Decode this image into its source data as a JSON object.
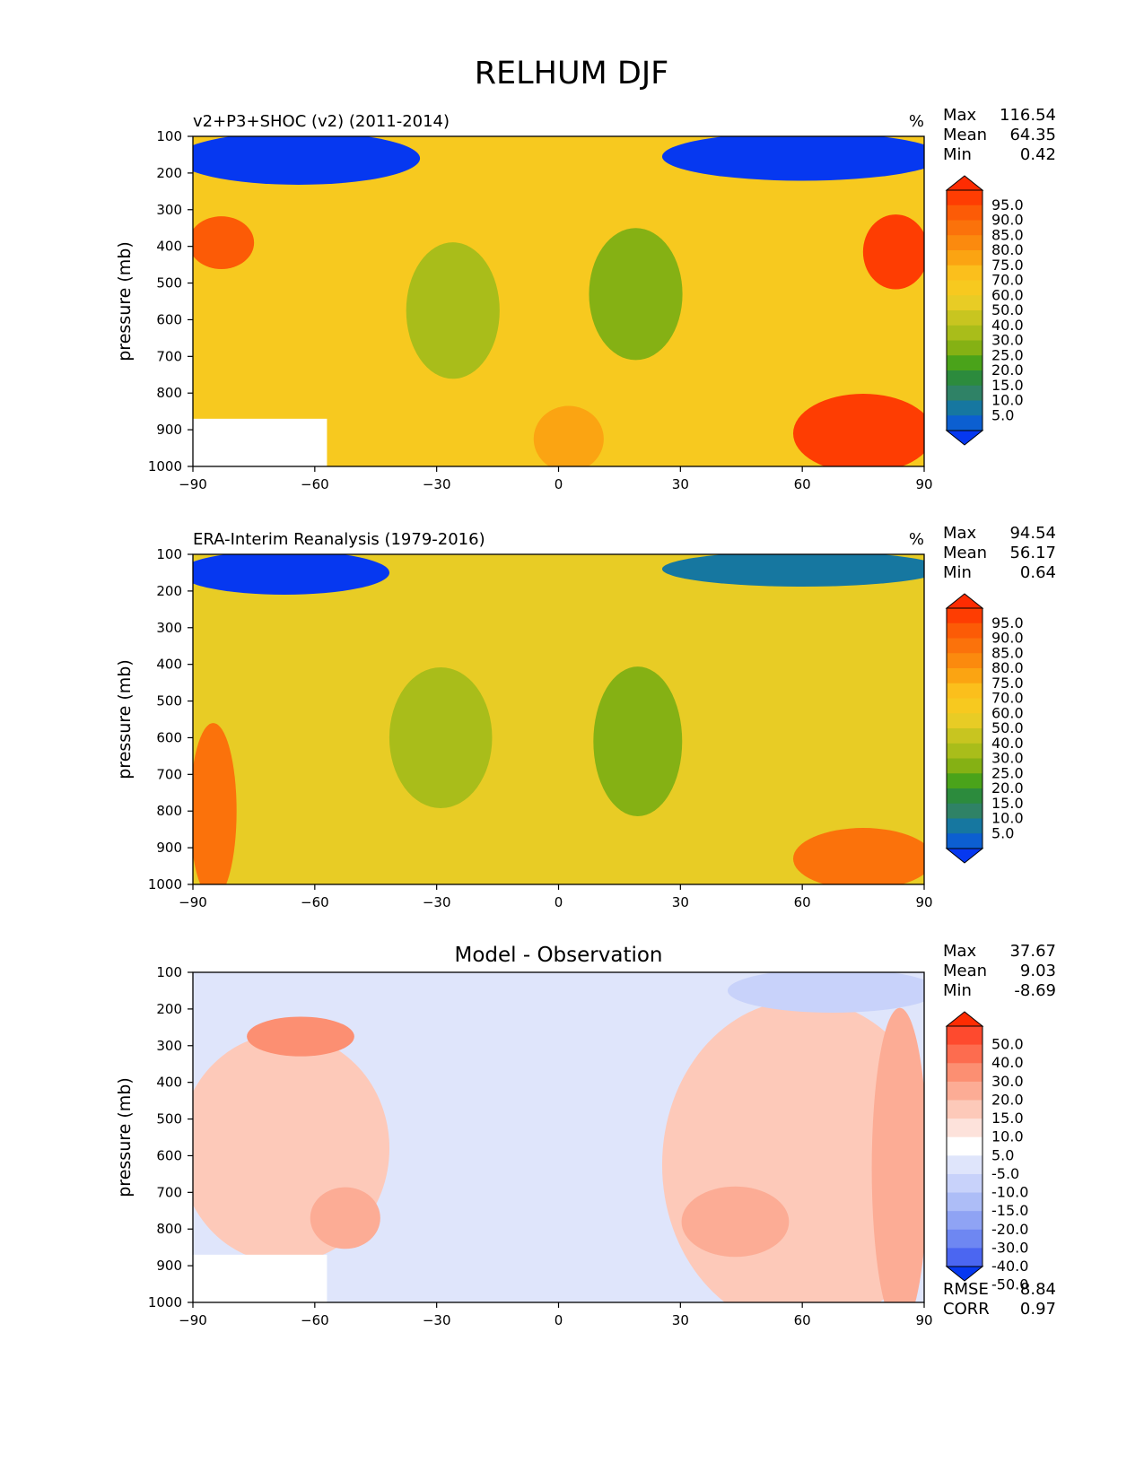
{
  "figure_title": "RELHUM DJF",
  "chart_data": [
    {
      "type": "heatmap",
      "title": "v2+P3+SHOC (v2) (2011-2014)",
      "units": "%",
      "ylabel": "pressure (mb)",
      "xlim": [
        -90,
        90
      ],
      "ylim": [
        1000,
        100
      ],
      "x_ticks": [
        "−90",
        "−60",
        "−30",
        "0",
        "30",
        "60",
        "90"
      ],
      "y_ticks": [
        "100",
        "200",
        "300",
        "400",
        "500",
        "600",
        "700",
        "800",
        "900",
        "1000"
      ],
      "stats": [
        {
          "label": "Max",
          "value": "116.54"
        },
        {
          "label": "Mean",
          "value": "64.35"
        },
        {
          "label": "Min",
          "value": "0.42"
        }
      ],
      "colorbar": {
        "labels": [
          "95.0",
          "90.0",
          "85.0",
          "80.0",
          "75.0",
          "70.0",
          "60.0",
          "50.0",
          "40.0",
          "30.0",
          "25.0",
          "20.0",
          "15.0",
          "10.0",
          "5.0"
        ],
        "colors": [
          "#fe2c02",
          "#fe3d02",
          "#fc5b06",
          "#fb720b",
          "#fb8a0e",
          "#fba412",
          "#fbbf1c",
          "#f7c91f",
          "#e8cc25",
          "#c8c520",
          "#a9bd1a",
          "#85b114",
          "#4aa31a",
          "#2c8b3d",
          "#2f8266",
          "#1677a0",
          "#0c5fd1",
          "#0638f0"
        ],
        "over_color": "#fe2c02",
        "under_color": "#0638f0"
      },
      "regions": [
        {
          "name": "upper-tropospheric dry layer, southern high latitudes",
          "x": [
            -90,
            -38
          ],
          "y": [
            100,
            220
          ],
          "value": 3
        },
        {
          "name": "upper-tropospheric dry layer, northern high latitudes",
          "x": [
            30,
            90
          ],
          "y": [
            100,
            210
          ],
          "value": 4
        },
        {
          "name": "southern subtropical minimum",
          "x": [
            -36,
            -16
          ],
          "y": [
            420,
            730
          ],
          "value": 34
        },
        {
          "name": "northern subtropical minimum",
          "x": [
            9,
            29
          ],
          "y": [
            380,
            680
          ],
          "value": 27
        },
        {
          "name": "antarctic mid-troposphere maximum",
          "x": [
            -90,
            -76
          ],
          "y": [
            330,
            450
          ],
          "value": 94
        },
        {
          "name": "arctic mid-troposphere maximum",
          "x": [
            76,
            90
          ],
          "y": [
            330,
            500
          ],
          "value": 96
        },
        {
          "name": "arctic boundary layer maximum",
          "x": [
            60,
            90
          ],
          "y": [
            820,
            1000
          ],
          "value": 95
        },
        {
          "name": "equatorial surface layer",
          "x": [
            -5,
            10
          ],
          "y": [
            850,
            1000
          ],
          "value": 78
        }
      ],
      "missing_region": {
        "x": [
          -90,
          -57
        ],
        "y": [
          870,
          1000
        ]
      }
    },
    {
      "type": "heatmap",
      "title": "ERA-Interim Reanalysis (1979-2016)",
      "units": "%",
      "ylabel": "pressure (mb)",
      "xlim": [
        -90,
        90
      ],
      "ylim": [
        1000,
        100
      ],
      "x_ticks": [
        "−90",
        "−60",
        "−30",
        "0",
        "30",
        "60",
        "90"
      ],
      "y_ticks": [
        "100",
        "200",
        "300",
        "400",
        "500",
        "600",
        "700",
        "800",
        "900",
        "1000"
      ],
      "stats": [
        {
          "label": "Max",
          "value": "94.54"
        },
        {
          "label": "Mean",
          "value": "56.17"
        },
        {
          "label": "Min",
          "value": "0.64"
        }
      ],
      "colorbar": {
        "labels": [
          "95.0",
          "90.0",
          "85.0",
          "80.0",
          "75.0",
          "70.0",
          "60.0",
          "50.0",
          "40.0",
          "30.0",
          "25.0",
          "20.0",
          "15.0",
          "10.0",
          "5.0"
        ],
        "colors": [
          "#fe2c02",
          "#fe3d02",
          "#fc5b06",
          "#fb720b",
          "#fb8a0e",
          "#fba412",
          "#fbbf1c",
          "#f7c91f",
          "#e8cc25",
          "#c8c520",
          "#a9bd1a",
          "#85b114",
          "#4aa31a",
          "#2c8b3d",
          "#2f8266",
          "#1677a0",
          "#0c5fd1",
          "#0638f0"
        ],
        "over_color": "#fe2c02",
        "under_color": "#0638f0"
      },
      "regions": [
        {
          "name": "upper-tropospheric dry layer, southern high latitudes",
          "x": [
            -90,
            -45
          ],
          "y": [
            100,
            200
          ],
          "value": 4
        },
        {
          "name": "upper-tropospheric dry layer, northern high latitudes",
          "x": [
            30,
            90
          ],
          "y": [
            100,
            180
          ],
          "value": 6
        },
        {
          "name": "southern subtropical minimum",
          "x": [
            -40,
            -18
          ],
          "y": [
            440,
            760
          ],
          "value": 30
        },
        {
          "name": "northern subtropical minimum",
          "x": [
            10,
            29
          ],
          "y": [
            440,
            780
          ],
          "value": 26
        },
        {
          "name": "antarctic boundary layer maximum",
          "x": [
            -90,
            -80
          ],
          "y": [
            600,
            1000
          ],
          "value": 86
        },
        {
          "name": "arctic boundary layer maximum",
          "x": [
            60,
            90
          ],
          "y": [
            860,
            1000
          ],
          "value": 87
        }
      ]
    },
    {
      "type": "heatmap",
      "title": "Model - Observation",
      "units": "",
      "ylabel": "pressure (mb)",
      "xlim": [
        -90,
        90
      ],
      "ylim": [
        1000,
        100
      ],
      "x_ticks": [
        "−90",
        "−60",
        "−30",
        "0",
        "30",
        "60",
        "90"
      ],
      "y_ticks": [
        "100",
        "200",
        "300",
        "400",
        "500",
        "600",
        "700",
        "800",
        "900",
        "1000"
      ],
      "stats": [
        {
          "label": "Max",
          "value": "37.67"
        },
        {
          "label": "Mean",
          "value": "9.03"
        },
        {
          "label": "Min",
          "value": "-8.69"
        }
      ],
      "footer_stats": [
        {
          "label": "RMSE",
          "value": "8.84"
        },
        {
          "label": "CORR",
          "value": "0.97"
        }
      ],
      "colorbar": {
        "labels": [
          "50.0",
          "40.0",
          "30.0",
          "20.0",
          "15.0",
          "10.0",
          "5.0",
          "-5.0",
          "-10.0",
          "-15.0",
          "-20.0",
          "-30.0",
          "-40.0",
          "-50.0"
        ],
        "colors": [
          "#fe2c02",
          "#fe4a2e",
          "#fd6c4f",
          "#fc8f72",
          "#fcac95",
          "#fdc9b9",
          "#fde2db",
          "#ffffff",
          "#dfe5fb",
          "#c8d2fa",
          "#adbdf7",
          "#8fa3f4",
          "#6e87f2",
          "#4b66f1",
          "#0638f0"
        ],
        "over_color": "#fe2c02",
        "under_color": "#0638f0"
      },
      "regions": [
        {
          "name": "southern upper-tropospheric moist bias",
          "x": [
            -75,
            -52
          ],
          "y": [
            230,
            320
          ],
          "value": 33
        },
        {
          "name": "southern mid-level moist bias",
          "x": [
            -60,
            -45
          ],
          "y": [
            700,
            840
          ],
          "value": 27
        },
        {
          "name": "southern boundary layer bias",
          "x": [
            -90,
            -45
          ],
          "y": [
            320,
            840
          ],
          "value": 18
        },
        {
          "name": "northern mid-level moist bias",
          "x": [
            32,
            55
          ],
          "y": [
            700,
            860
          ],
          "value": 24
        },
        {
          "name": "northern high-latitude bias",
          "x": [
            30,
            90
          ],
          "y": [
            250,
            1000
          ],
          "value": 17
        },
        {
          "name": "arctic column bias",
          "x": [
            78,
            90
          ],
          "y": [
            270,
            1000
          ],
          "value": 24
        },
        {
          "name": "northern stratospheric dry bias",
          "x": [
            45,
            90
          ],
          "y": [
            100,
            200
          ],
          "value": -7
        }
      ],
      "missing_region": {
        "x": [
          -90,
          -57
        ],
        "y": [
          870,
          1000
        ]
      }
    }
  ]
}
